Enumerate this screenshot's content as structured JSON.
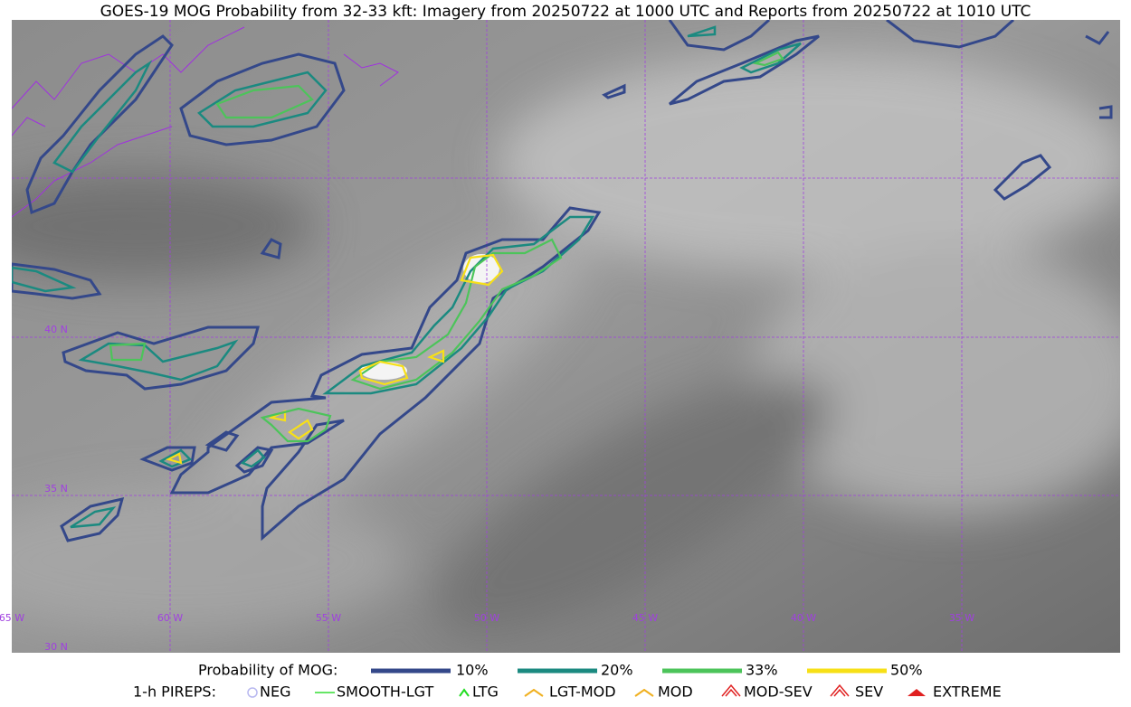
{
  "title": "GOES-19 MOG Probability from 32-33 kft: Imagery from 20250722 at 1000 UTC and Reports from 20250722 at 1010 UTC",
  "map": {
    "lon_labels": [
      "65 W",
      "60 W",
      "55 W",
      "50 W",
      "45 W",
      "40 W",
      "35 W"
    ],
    "lat_labels": [
      "40 N",
      "35 N",
      "30 N"
    ]
  },
  "legend": {
    "probability": {
      "label": "Probability of MOG:",
      "items": [
        "10%",
        "20%",
        "33%",
        "50%"
      ]
    },
    "pireps": {
      "label": "1-h PIREPS:",
      "items": [
        "NEG",
        "SMOOTH-LGT",
        "LTG",
        "LGT-MOD",
        "MOD",
        "MOD-SEV",
        "SEV",
        "EXTREME"
      ]
    }
  }
}
